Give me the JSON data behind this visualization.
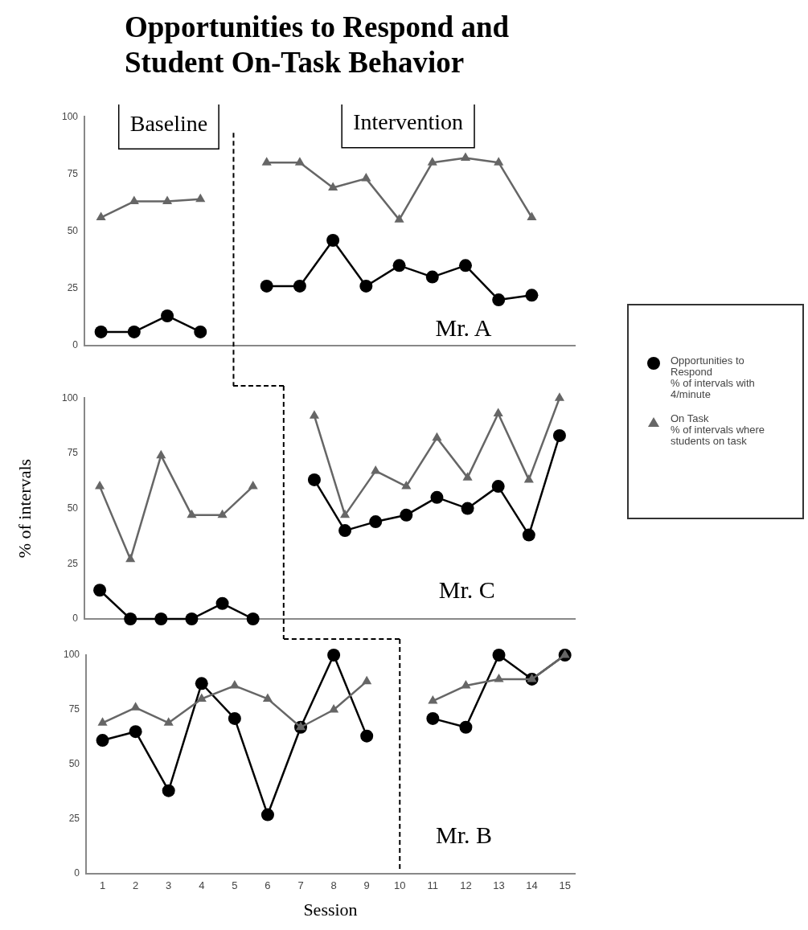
{
  "chart_data": [
    {
      "type": "line",
      "title": "Opportunities to Respond and Student On-Task Behavior",
      "xlim": [
        0.5,
        15.3
      ],
      "ylim": [
        0,
        100
      ],
      "yticks": [
        0,
        25,
        50,
        75,
        100
      ],
      "tick_labels": "y",
      "annotations": [
        "Baseline",
        "Intervention",
        "Mr. A"
      ],
      "ref_lines": [
        {
          "axis": "x",
          "value": 5,
          "color": "#000000",
          "line_style": "dashed"
        }
      ],
      "series": [
        {
          "color": "#000000",
          "marker": "circle",
          "x": [
            1,
            2,
            3,
            4,
            5,
            6,
            7,
            8,
            9,
            10,
            11,
            12,
            13,
            14
          ],
          "values": [
            6,
            6,
            13,
            6,
            null,
            26,
            26,
            46,
            26,
            35,
            30,
            35,
            20,
            22
          ]
        },
        {
          "color": "#666666",
          "marker": "triangle",
          "x": [
            1,
            2,
            3,
            4,
            5,
            6,
            7,
            8,
            9,
            10,
            11,
            12,
            13,
            14
          ],
          "values": [
            56,
            63,
            63,
            64,
            null,
            80,
            80,
            69,
            73,
            55,
            80,
            82,
            80,
            56
          ]
        }
      ]
    },
    {
      "type": "line",
      "ylabel": "% of intervals",
      "categories": [
        null,
        null,
        null,
        null,
        null,
        null,
        null,
        null,
        null,
        null,
        null,
        null,
        null,
        null,
        null,
        null
      ],
      "ylim": [
        0,
        100
      ],
      "yticks": [
        0,
        25,
        50,
        75,
        100
      ],
      "tick_labels": "y",
      "legend": "right",
      "annotations": [
        "Mr. C"
      ],
      "series": [
        {
          "name": "Opportunities to Respond\n% of intervals with 4/minute",
          "color": "#000000",
          "marker": "circle",
          "values": [
            13,
            0,
            0,
            0,
            7,
            0,
            null,
            63,
            40,
            44,
            47,
            55,
            50,
            60,
            38,
            83
          ]
        },
        {
          "name": "On Task\n% of intervals where students on task",
          "color": "#666666",
          "marker": "triangle",
          "values": [
            60,
            27,
            74,
            47,
            47,
            60,
            null,
            92,
            47,
            67,
            60,
            82,
            64,
            93,
            63,
            100
          ]
        }
      ]
    },
    {
      "type": "line",
      "xlabel": "Session",
      "xlim": [
        0.5,
        15.3
      ],
      "xticks": [
        1,
        2,
        3,
        4,
        5,
        6,
        7,
        8,
        9,
        10,
        11,
        12,
        13,
        14,
        15
      ],
      "ylim": [
        0,
        100
      ],
      "yticks": [
        0,
        25,
        50,
        75,
        100
      ],
      "annotations": [
        "Mr. B"
      ],
      "ref_lines": [
        {
          "axis": "x",
          "value": 10,
          "color": "#000000",
          "line_style": "dashed"
        }
      ],
      "series": [
        {
          "color": "#000000",
          "marker": "circle",
          "x": [
            1,
            2,
            3,
            4,
            5,
            6,
            7,
            8,
            9,
            10,
            11,
            12,
            13,
            14,
            15
          ],
          "values": [
            61,
            65,
            38,
            87,
            71,
            27,
            67,
            100,
            63,
            null,
            71,
            67,
            100,
            89,
            100
          ]
        },
        {
          "color": "#666666",
          "marker": "triangle",
          "x": [
            1,
            2,
            3,
            4,
            5,
            6,
            7,
            8,
            9,
            10,
            11,
            12,
            13,
            14,
            15
          ],
          "values": [
            69,
            76,
            69,
            80,
            86,
            80,
            67,
            75,
            88,
            null,
            79,
            86,
            89,
            89,
            100
          ]
        }
      ]
    }
  ]
}
